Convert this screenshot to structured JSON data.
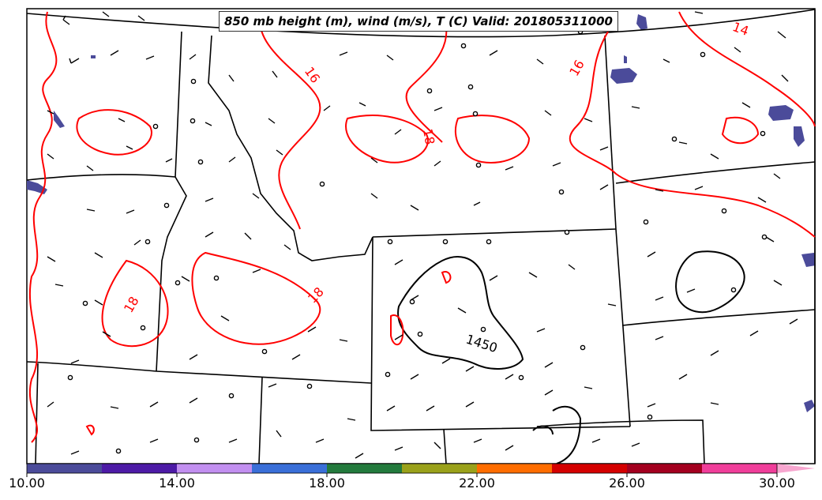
{
  "title": "850 mb height (m), wind (m/s), T (C) Valid: 201805311000",
  "temperature_contour_labels": [
    "14",
    "16",
    "16",
    "18",
    "18",
    "18"
  ],
  "height_contour_label": "1450",
  "colorbar": {
    "tick_labels": [
      "10.00",
      "14.00",
      "18.00",
      "22.00",
      "26.00",
      "30.00"
    ],
    "colors": [
      "#4b4b9a",
      "#4d1aa6",
      "#c28ff0",
      "#3a6fd8",
      "#237a3d",
      "#9aa11a",
      "#ff6d00",
      "#d40000",
      "#a3001f",
      "#f03e9a",
      "#f7a6cf"
    ]
  },
  "colors": {
    "temperature": "#ff0000",
    "height": "#000000",
    "boundaries": "#000000",
    "shading_low": "#4b4b9a"
  }
}
